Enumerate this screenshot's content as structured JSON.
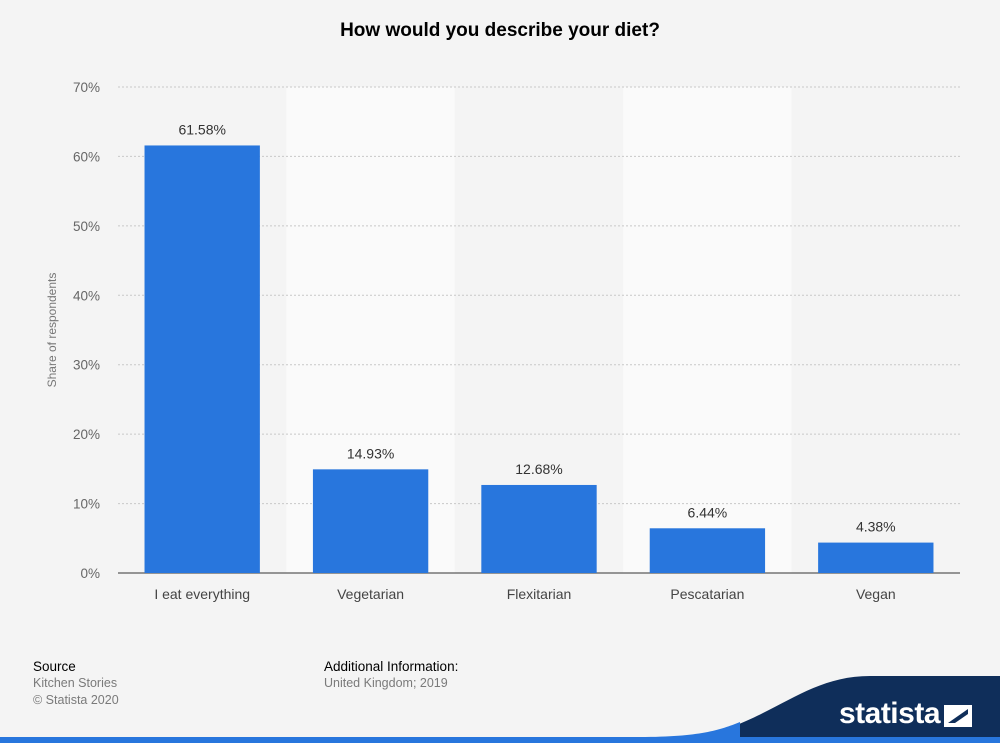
{
  "chart_data": {
    "type": "bar",
    "title": "How would you describe your diet?",
    "xlabel": "",
    "ylabel": "Share of respondents",
    "categories": [
      "I eat everything",
      "Vegetarian",
      "Flexitarian",
      "Pescatarian",
      "Vegan"
    ],
    "values": [
      61.58,
      14.93,
      12.68,
      6.44,
      4.38
    ],
    "data_labels": [
      "61.58%",
      "14.93%",
      "12.68%",
      "6.44%",
      "4.38%"
    ],
    "ylim": [
      0,
      70
    ],
    "yticks": [
      "0%",
      "10%",
      "20%",
      "30%",
      "40%",
      "50%",
      "60%",
      "70%"
    ],
    "grid": true,
    "legend": "none",
    "bar_color": "#2876dd"
  },
  "footer": {
    "source_heading": "Source",
    "source_name": "Kitchen Stories",
    "copyright": "© Statista 2020",
    "info_heading": "Additional Information:",
    "info_text": "United Kingdom; 2019"
  },
  "logo": {
    "text": "statista",
    "color": "#0f2e5a"
  }
}
